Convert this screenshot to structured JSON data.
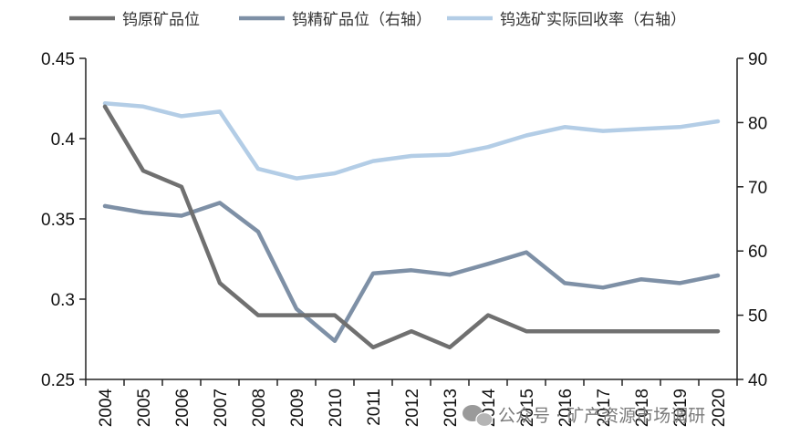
{
  "chart_data": {
    "type": "line",
    "categories": [
      "2004",
      "2005",
      "2006",
      "2007",
      "2008",
      "2009",
      "2010",
      "2011",
      "2012",
      "2013",
      "2014",
      "2015",
      "2016",
      "2017",
      "2018",
      "2019",
      "2020"
    ],
    "series": [
      {
        "name": "钨原矿品位",
        "axis": "left",
        "color": "#707070",
        "values": [
          0.42,
          0.38,
          0.37,
          0.31,
          0.29,
          0.29,
          0.29,
          0.27,
          0.28,
          0.27,
          0.29,
          0.28,
          0.28,
          0.28,
          0.28,
          0.28,
          0.28
        ]
      },
      {
        "name": "钨精矿品位（右轴）",
        "axis": "right",
        "color": "#7e90a6",
        "values": [
          67,
          66,
          65.5,
          67.5,
          63,
          51,
          46,
          56.5,
          57,
          56.3,
          58,
          59.8,
          55,
          54.3,
          55.6,
          55,
          56.2
        ]
      },
      {
        "name": "钨选矿实际回收率（右轴）",
        "axis": "right",
        "color": "#b3cde6",
        "values": [
          83,
          82.5,
          81,
          81.7,
          72.8,
          71.3,
          72.1,
          74,
          74.8,
          75,
          76.2,
          78,
          79.3,
          78.7,
          79,
          79.3,
          80.2
        ]
      }
    ],
    "y_left": {
      "ylim": [
        0.25,
        0.45
      ],
      "ticks": [
        "0.25",
        "0.3",
        "0.35",
        "0.4",
        "0.45"
      ],
      "values": [
        0.25,
        0.3,
        0.35,
        0.4,
        0.45
      ]
    },
    "y_right": {
      "ylim": [
        40,
        90
      ],
      "ticks": [
        "40",
        "50",
        "60",
        "70",
        "80",
        "90"
      ],
      "values": [
        40,
        50,
        60,
        70,
        80,
        90
      ]
    },
    "legend_position": "top",
    "grid": false
  },
  "watermark": {
    "icon": "wechat-icon",
    "text": "公众号 · 矿产资源市场调研"
  }
}
